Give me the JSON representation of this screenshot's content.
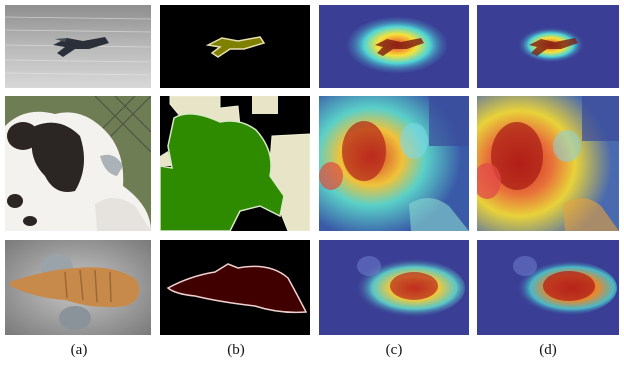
{
  "figure": {
    "column_labels": [
      "(a)",
      "(b)",
      "(c)",
      "(d)"
    ],
    "rows": [
      "bird",
      "calf",
      "cat"
    ],
    "colors": {
      "bird_mask": "#808000",
      "calf_mask": "#2e8b00",
      "calf_background": "#e8e4c8",
      "cat_mask": "#400000",
      "heat_low": "#3b3f9a",
      "heat_high": "#c81e1e"
    }
  }
}
